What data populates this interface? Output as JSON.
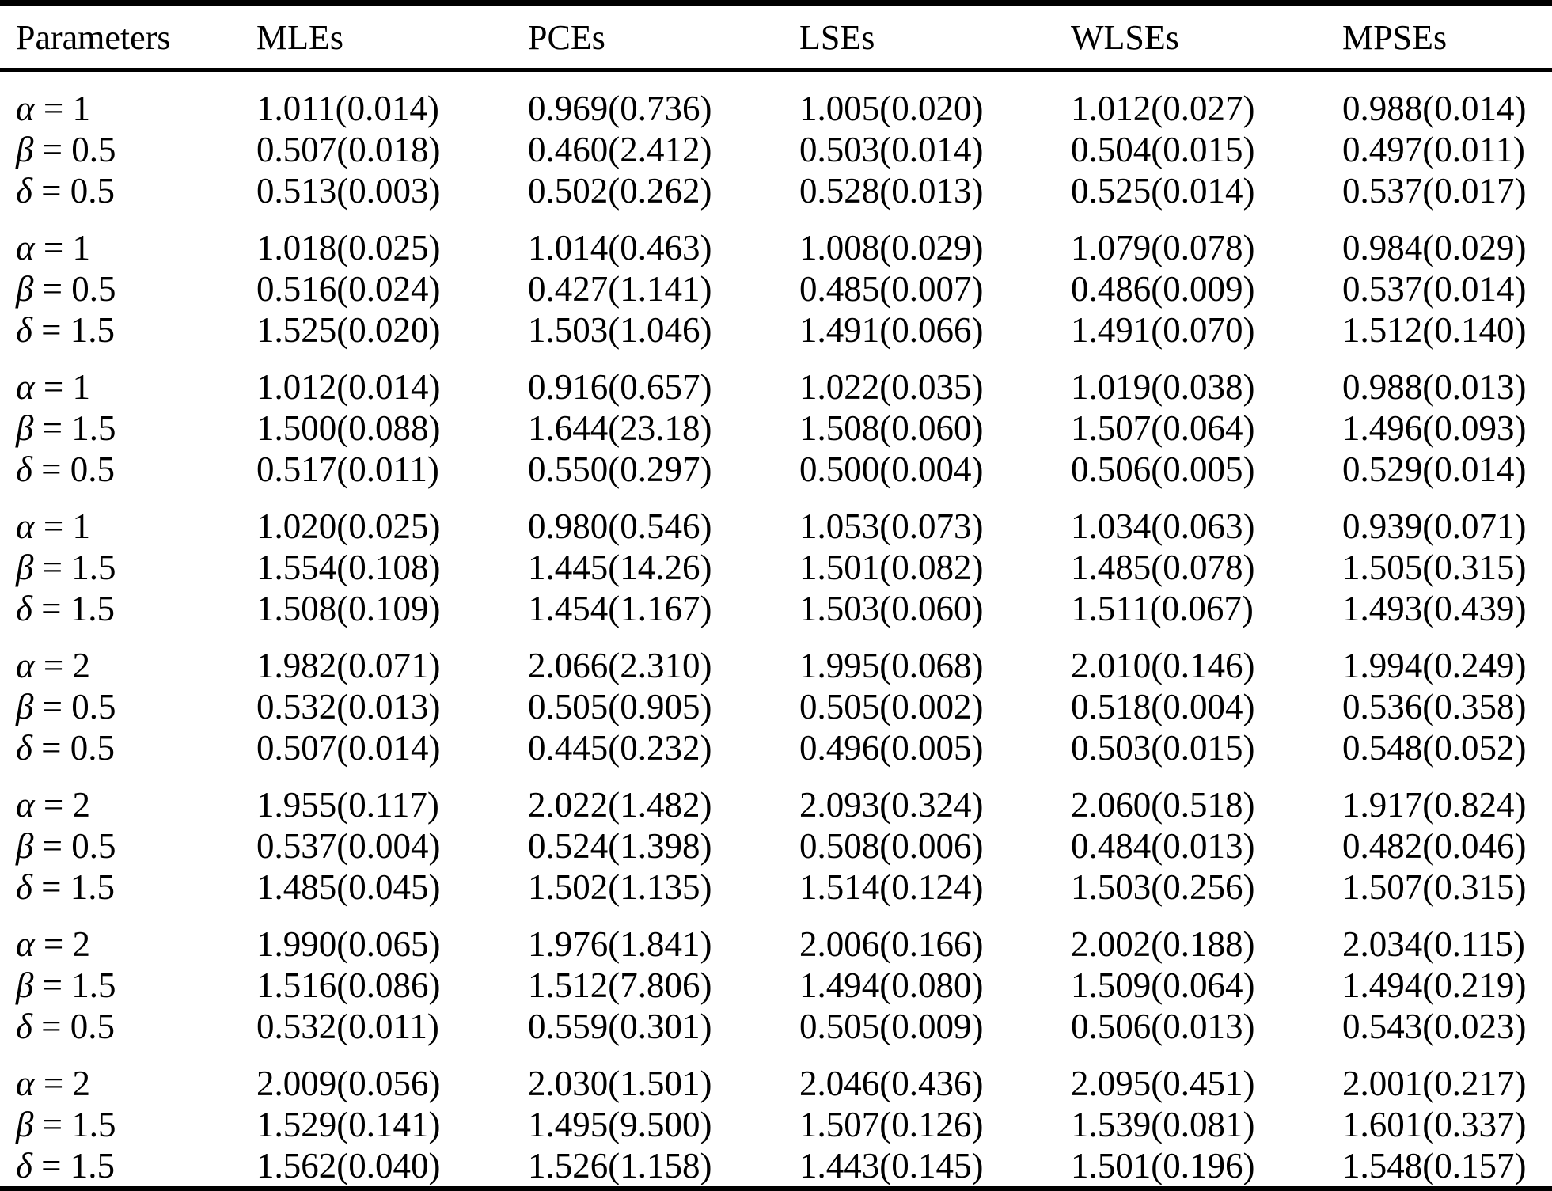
{
  "table": {
    "columns": [
      "Parameters",
      "MLEs",
      "PCEs",
      "LSEs",
      "WLSEs",
      "MPSEs"
    ],
    "groups": [
      {
        "rows": [
          {
            "symbol": "α",
            "value": "1",
            "estimates": [
              "1.011(0.014)",
              "0.969(0.736)",
              "1.005(0.020)",
              "1.012(0.027)",
              "0.988(0.014)"
            ]
          },
          {
            "symbol": "β",
            "value": "0.5",
            "estimates": [
              "0.507(0.018)",
              "0.460(2.412)",
              "0.503(0.014)",
              "0.504(0.015)",
              "0.497(0.011)"
            ]
          },
          {
            "symbol": "δ",
            "value": "0.5",
            "estimates": [
              "0.513(0.003)",
              "0.502(0.262)",
              "0.528(0.013)",
              "0.525(0.014)",
              "0.537(0.017)"
            ]
          }
        ]
      },
      {
        "rows": [
          {
            "symbol": "α",
            "value": "1",
            "estimates": [
              "1.018(0.025)",
              "1.014(0.463)",
              "1.008(0.029)",
              "1.079(0.078)",
              "0.984(0.029)"
            ]
          },
          {
            "symbol": "β",
            "value": "0.5",
            "estimates": [
              "0.516(0.024)",
              "0.427(1.141)",
              "0.485(0.007)",
              "0.486(0.009)",
              "0.537(0.014)"
            ]
          },
          {
            "symbol": "δ",
            "value": "1.5",
            "estimates": [
              "1.525(0.020)",
              "1.503(1.046)",
              "1.491(0.066)",
              "1.491(0.070)",
              "1.512(0.140)"
            ]
          }
        ]
      },
      {
        "rows": [
          {
            "symbol": "α",
            "value": "1",
            "estimates": [
              "1.012(0.014)",
              "0.916(0.657)",
              "1.022(0.035)",
              "1.019(0.038)",
              "0.988(0.013)"
            ]
          },
          {
            "symbol": "β",
            "value": "1.5",
            "estimates": [
              "1.500(0.088)",
              "1.644(23.18)",
              "1.508(0.060)",
              "1.507(0.064)",
              "1.496(0.093)"
            ]
          },
          {
            "symbol": "δ",
            "value": "0.5",
            "estimates": [
              "0.517(0.011)",
              "0.550(0.297)",
              "0.500(0.004)",
              "0.506(0.005)",
              "0.529(0.014)"
            ]
          }
        ]
      },
      {
        "rows": [
          {
            "symbol": "α",
            "value": "1",
            "estimates": [
              "1.020(0.025)",
              "0.980(0.546)",
              "1.053(0.073)",
              "1.034(0.063)",
              "0.939(0.071)"
            ]
          },
          {
            "symbol": "β",
            "value": "1.5",
            "estimates": [
              "1.554(0.108)",
              "1.445(14.26)",
              "1.501(0.082)",
              "1.485(0.078)",
              "1.505(0.315)"
            ]
          },
          {
            "symbol": "δ",
            "value": "1.5",
            "estimates": [
              "1.508(0.109)",
              "1.454(1.167)",
              "1.503(0.060)",
              "1.511(0.067)",
              "1.493(0.439)"
            ]
          }
        ]
      },
      {
        "rows": [
          {
            "symbol": "α",
            "value": "2",
            "estimates": [
              "1.982(0.071)",
              "2.066(2.310)",
              "1.995(0.068)",
              "2.010(0.146)",
              "1.994(0.249)"
            ]
          },
          {
            "symbol": "β",
            "value": "0.5",
            "estimates": [
              "0.532(0.013)",
              "0.505(0.905)",
              "0.505(0.002)",
              "0.518(0.004)",
              "0.536(0.358)"
            ]
          },
          {
            "symbol": "δ",
            "value": "0.5",
            "estimates": [
              "0.507(0.014)",
              "0.445(0.232)",
              "0.496(0.005)",
              "0.503(0.015)",
              "0.548(0.052)"
            ]
          }
        ]
      },
      {
        "rows": [
          {
            "symbol": "α",
            "value": "2",
            "estimates": [
              "1.955(0.117)",
              "2.022(1.482)",
              "2.093(0.324)",
              "2.060(0.518)",
              "1.917(0.824)"
            ]
          },
          {
            "symbol": "β",
            "value": "0.5",
            "estimates": [
              "0.537(0.004)",
              "0.524(1.398)",
              "0.508(0.006)",
              "0.484(0.013)",
              "0.482(0.046)"
            ]
          },
          {
            "symbol": "δ",
            "value": "1.5",
            "estimates": [
              "1.485(0.045)",
              "1.502(1.135)",
              "1.514(0.124)",
              "1.503(0.256)",
              "1.507(0.315)"
            ]
          }
        ]
      },
      {
        "rows": [
          {
            "symbol": "α",
            "value": "2",
            "estimates": [
              "1.990(0.065)",
              "1.976(1.841)",
              "2.006(0.166)",
              "2.002(0.188)",
              "2.034(0.115)"
            ]
          },
          {
            "symbol": "β",
            "value": "1.5",
            "estimates": [
              "1.516(0.086)",
              "1.512(7.806)",
              "1.494(0.080)",
              "1.509(0.064)",
              "1.494(0.219)"
            ]
          },
          {
            "symbol": "δ",
            "value": "0.5",
            "estimates": [
              "0.532(0.011)",
              "0.559(0.301)",
              "0.505(0.009)",
              "0.506(0.013)",
              "0.543(0.023)"
            ]
          }
        ]
      },
      {
        "rows": [
          {
            "symbol": "α",
            "value": "2",
            "estimates": [
              "2.009(0.056)",
              "2.030(1.501)",
              "2.046(0.436)",
              "2.095(0.451)",
              "2.001(0.217)"
            ]
          },
          {
            "symbol": "β",
            "value": "1.5",
            "estimates": [
              "1.529(0.141)",
              "1.495(9.500)",
              "1.507(0.126)",
              "1.539(0.081)",
              "1.601(0.337)"
            ]
          },
          {
            "symbol": "δ",
            "value": "1.5",
            "estimates": [
              "1.562(0.040)",
              "1.526(1.158)",
              "1.443(0.145)",
              "1.501(0.196)",
              "1.548(0.157)"
            ]
          }
        ]
      }
    ]
  }
}
